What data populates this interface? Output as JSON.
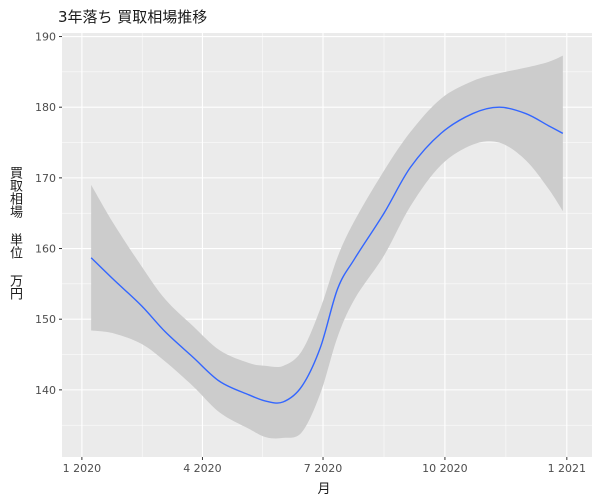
{
  "chart_data": {
    "type": "line",
    "title": "3年落ち 買取相場推移",
    "xlabel": "月",
    "ylabel": "買取相場 単位 万円",
    "x_ticks": [
      {
        "value": "2020-01-01",
        "label": "1 2020"
      },
      {
        "value": "2020-04-01",
        "label": "4 2020"
      },
      {
        "value": "2020-07-01",
        "label": "7 2020"
      },
      {
        "value": "2020-10-01",
        "label": "10 2020"
      },
      {
        "value": "2021-01-01",
        "label": "1 2021"
      }
    ],
    "y_ticks": [
      140,
      150,
      160,
      170,
      180,
      190
    ],
    "xlim": [
      "2019-12-17",
      "2021-01-20"
    ],
    "ylim": [
      130.5,
      190.5
    ],
    "grid": true,
    "series": [
      {
        "color": "#3366FF",
        "band_color": "#CCCCCC",
        "points": [
          {
            "x": "2020-01-08",
            "y": 158.7,
            "lower": 148.4,
            "upper": 169.0
          },
          {
            "x": "2020-01-25",
            "y": 155.6,
            "lower": 148.0,
            "upper": 163.5
          },
          {
            "x": "2020-02-15",
            "y": 151.9,
            "lower": 146.5,
            "upper": 157.5
          },
          {
            "x": "2020-03-04",
            "y": 148.2,
            "lower": 144.0,
            "upper": 152.8
          },
          {
            "x": "2020-03-25",
            "y": 144.6,
            "lower": 140.5,
            "upper": 149.0
          },
          {
            "x": "2020-04-14",
            "y": 141.2,
            "lower": 136.8,
            "upper": 145.6
          },
          {
            "x": "2020-05-06",
            "y": 139.3,
            "lower": 134.5,
            "upper": 143.8
          },
          {
            "x": "2020-05-19",
            "y": 138.4,
            "lower": 133.3,
            "upper": 143.4
          },
          {
            "x": "2020-06-01",
            "y": 138.3,
            "lower": 133.2,
            "upper": 143.4
          },
          {
            "x": "2020-06-15",
            "y": 140.5,
            "lower": 134.0,
            "upper": 145.5
          },
          {
            "x": "2020-06-29",
            "y": 146.0,
            "lower": 139.5,
            "upper": 151.5
          },
          {
            "x": "2020-07-12",
            "y": 154.3,
            "lower": 147.5,
            "upper": 158.8
          },
          {
            "x": "2020-07-25",
            "y": 158.6,
            "lower": 152.9,
            "upper": 164.0
          },
          {
            "x": "2020-08-16",
            "y": 165.0,
            "lower": 159.0,
            "upper": 171.0
          },
          {
            "x": "2020-09-05",
            "y": 171.5,
            "lower": 166.0,
            "upper": 176.5
          },
          {
            "x": "2020-09-28",
            "y": 176.3,
            "lower": 171.8,
            "upper": 181.2
          },
          {
            "x": "2020-10-22",
            "y": 179.1,
            "lower": 174.7,
            "upper": 183.7
          },
          {
            "x": "2020-11-11",
            "y": 180.0,
            "lower": 175.0,
            "upper": 184.8
          },
          {
            "x": "2020-12-01",
            "y": 179.1,
            "lower": 172.5,
            "upper": 185.6
          },
          {
            "x": "2020-12-18",
            "y": 177.4,
            "lower": 168.5,
            "upper": 186.4
          },
          {
            "x": "2020-12-29",
            "y": 176.3,
            "lower": 165.3,
            "upper": 187.3
          }
        ]
      }
    ]
  }
}
